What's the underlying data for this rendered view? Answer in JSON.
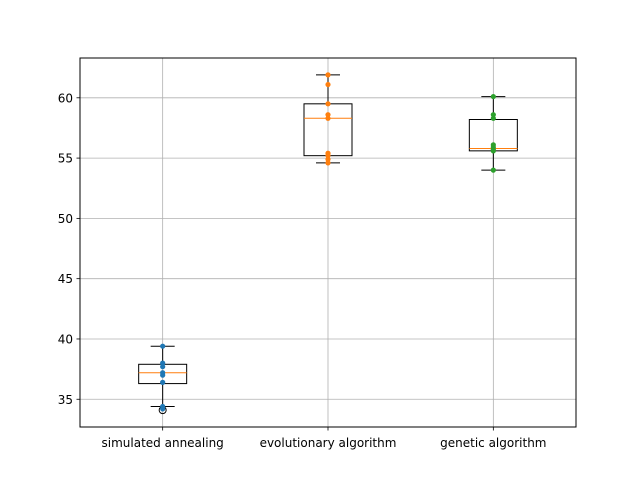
{
  "chart_data": {
    "type": "box",
    "title": "",
    "xlabel": "",
    "ylabel": "",
    "ylim": [
      32.7,
      63.3
    ],
    "yticks": [
      35,
      40,
      45,
      50,
      55,
      60
    ],
    "grid": true,
    "categories": [
      "simulated annealing",
      "evolutionary algorithm",
      "genetic algorithm"
    ],
    "colors": [
      "#1f77b4",
      "#ff7f0e",
      "#2ca02c"
    ],
    "median_color": "#ff7f0e",
    "series": [
      {
        "label": "simulated annealing",
        "whisker_low": 34.4,
        "q1": 36.3,
        "median": 37.2,
        "q3": 37.9,
        "whisker_high": 39.4,
        "outliers": [
          34.1
        ],
        "points": [
          39.4,
          38.0,
          37.7,
          37.2,
          37.0,
          36.4,
          34.4,
          34.2
        ]
      },
      {
        "label": "evolutionary algorithm",
        "whisker_low": 54.6,
        "q1": 55.2,
        "median": 58.3,
        "q3": 59.5,
        "whisker_high": 61.9,
        "outliers": [],
        "points": [
          61.9,
          61.1,
          59.5,
          58.6,
          58.3,
          55.4,
          55.2,
          54.9,
          54.6
        ]
      },
      {
        "label": "genetic algorithm",
        "whisker_low": 54.0,
        "q1": 55.6,
        "median": 55.8,
        "q3": 58.2,
        "whisker_high": 60.1,
        "outliers": [],
        "points": [
          60.1,
          58.6,
          58.3,
          56.1,
          55.9,
          55.7,
          55.6,
          54.0
        ]
      }
    ]
  }
}
